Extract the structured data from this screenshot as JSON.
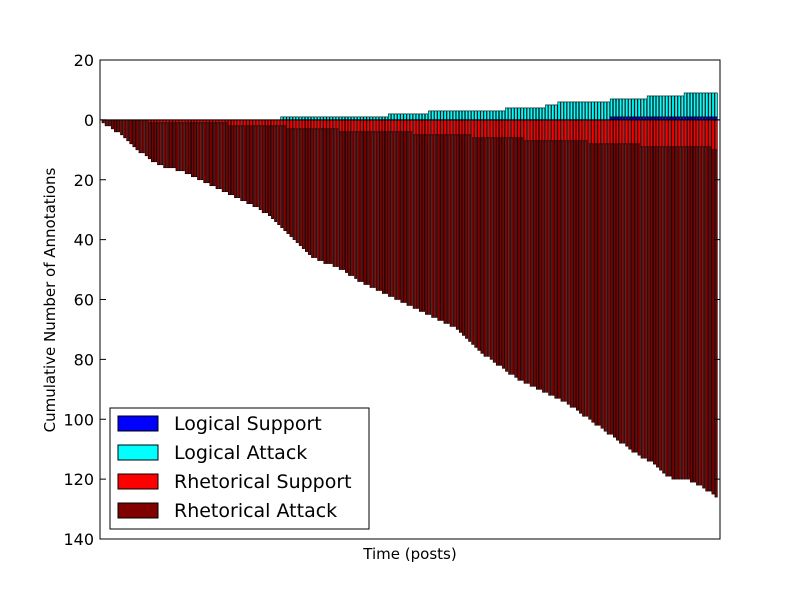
{
  "chart_data": {
    "type": "bar",
    "stacked": true,
    "xlabel": "Time (posts)",
    "ylabel": "Cumulative Number of Annotations",
    "title": "",
    "ylim": [
      20,
      -140
    ],
    "y_axis_inverted": true,
    "y_tick_labels": [
      "20",
      "0",
      "20",
      "40",
      "60",
      "80",
      "100",
      "120",
      "140"
    ],
    "y_tick_values": [
      -20,
      0,
      20,
      40,
      60,
      80,
      100,
      120,
      140
    ],
    "legend": {
      "placement": "lower-left"
    },
    "series": [
      {
        "name": "Logical Support",
        "color": "#0000ff"
      },
      {
        "name": "Logical Attack",
        "color": "#00ffff"
      },
      {
        "name": "Rhetorical Support",
        "color": "#ff0000"
      },
      {
        "name": "Rhetorical Attack",
        "color": "#800000"
      }
    ],
    "posts": 200,
    "cumulative_above_zero_profile": [
      [
        0,
        0
      ],
      [
        57,
        0
      ],
      [
        58,
        1
      ],
      [
        92,
        1
      ],
      [
        93,
        2
      ],
      [
        105,
        2
      ],
      [
        106,
        3
      ],
      [
        130,
        3
      ],
      [
        131,
        4
      ],
      [
        143,
        4
      ],
      [
        144,
        5
      ],
      [
        147,
        5
      ],
      [
        148,
        6
      ],
      [
        164,
        6
      ],
      [
        165,
        7
      ],
      [
        176,
        7
      ],
      [
        177,
        8
      ],
      [
        188,
        8
      ],
      [
        189,
        9
      ],
      [
        199,
        9
      ]
    ],
    "cumulative_below_zero_profile": [
      [
        0,
        1
      ],
      [
        3,
        3
      ],
      [
        6,
        5
      ],
      [
        10,
        9
      ],
      [
        14,
        12
      ],
      [
        18,
        15
      ],
      [
        22,
        16
      ],
      [
        26,
        17
      ],
      [
        30,
        19
      ],
      [
        34,
        21
      ],
      [
        38,
        23
      ],
      [
        42,
        25
      ],
      [
        46,
        27
      ],
      [
        50,
        29
      ],
      [
        54,
        32
      ],
      [
        58,
        36
      ],
      [
        62,
        40
      ],
      [
        66,
        44
      ],
      [
        70,
        47
      ],
      [
        74,
        48
      ],
      [
        78,
        50
      ],
      [
        82,
        53
      ],
      [
        86,
        55
      ],
      [
        90,
        57
      ],
      [
        94,
        59
      ],
      [
        98,
        61
      ],
      [
        102,
        63
      ],
      [
        106,
        65
      ],
      [
        110,
        67
      ],
      [
        114,
        69
      ],
      [
        118,
        73
      ],
      [
        122,
        77
      ],
      [
        126,
        80
      ],
      [
        130,
        83
      ],
      [
        134,
        86
      ],
      [
        138,
        88
      ],
      [
        142,
        90
      ],
      [
        146,
        92
      ],
      [
        150,
        94
      ],
      [
        154,
        97
      ],
      [
        158,
        100
      ],
      [
        162,
        103
      ],
      [
        166,
        106
      ],
      [
        170,
        109
      ],
      [
        174,
        112
      ],
      [
        178,
        114
      ],
      [
        182,
        118
      ],
      [
        186,
        120
      ],
      [
        190,
        120
      ],
      [
        194,
        122
      ],
      [
        199,
        126
      ]
    ]
  }
}
